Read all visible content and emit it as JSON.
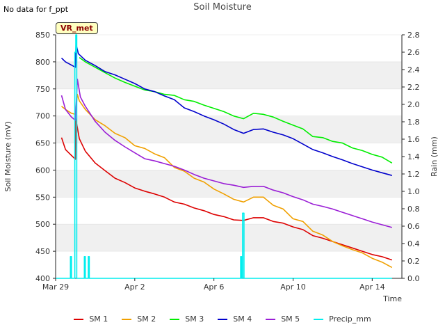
{
  "header": {
    "no_data_note": "No data for f_ppt",
    "title": "Soil Moisture",
    "site_badge": "VR_met"
  },
  "chart_data": {
    "type": "line",
    "title": "Soil Moisture",
    "xlabel": "Time",
    "ylabel": "Soil Moisture (mV)",
    "y2label": "Rain (mm)",
    "xlim": [
      0,
      17.5
    ],
    "ylim": [
      400,
      850
    ],
    "y2lim": [
      0,
      2.8
    ],
    "x_ticks": [
      {
        "x": 0,
        "label": "Mar 29"
      },
      {
        "x": 4,
        "label": "Apr 2"
      },
      {
        "x": 8,
        "label": "Apr 6"
      },
      {
        "x": 12,
        "label": "Apr 10"
      },
      {
        "x": 16,
        "label": "Apr 14"
      }
    ],
    "y_ticks": [
      400,
      450,
      500,
      550,
      600,
      650,
      700,
      750,
      800,
      850
    ],
    "y2_ticks": [
      0.0,
      0.2,
      0.4,
      0.6,
      0.8,
      1.0,
      1.2,
      1.4,
      1.6,
      1.8,
      2.0,
      2.2,
      2.4,
      2.6,
      2.8
    ],
    "grid": "alternating horizontal bands",
    "legend_position": "bottom",
    "series": [
      {
        "name": "SM 1",
        "color": "#dd0000",
        "axis": "left",
        "points": [
          [
            0.3,
            660
          ],
          [
            0.5,
            638
          ],
          [
            0.8,
            627
          ],
          [
            1.0,
            620
          ],
          [
            1.02,
            695
          ],
          [
            1.2,
            658
          ],
          [
            1.5,
            635
          ],
          [
            2.0,
            613
          ],
          [
            2.5,
            599
          ],
          [
            3.0,
            585
          ],
          [
            3.5,
            577
          ],
          [
            4.0,
            567
          ],
          [
            4.5,
            561
          ],
          [
            5.0,
            556
          ],
          [
            5.5,
            550
          ],
          [
            6.0,
            541
          ],
          [
            6.5,
            537
          ],
          [
            7.0,
            530
          ],
          [
            7.5,
            525
          ],
          [
            8.0,
            518
          ],
          [
            8.5,
            514
          ],
          [
            9.0,
            508
          ],
          [
            9.5,
            507
          ],
          [
            10.0,
            512
          ],
          [
            10.5,
            512
          ],
          [
            11.0,
            505
          ],
          [
            11.5,
            502
          ],
          [
            12.0,
            495
          ],
          [
            12.5,
            490
          ],
          [
            13.0,
            479
          ],
          [
            13.5,
            474
          ],
          [
            14.0,
            468
          ],
          [
            14.5,
            462
          ],
          [
            15.0,
            456
          ],
          [
            15.5,
            450
          ],
          [
            16.0,
            444
          ],
          [
            16.5,
            440
          ],
          [
            17.0,
            434
          ]
        ]
      },
      {
        "name": "SM 2",
        "color": "#f0a000",
        "axis": "left",
        "points": [
          [
            0.3,
            718
          ],
          [
            0.5,
            712
          ],
          [
            0.8,
            705
          ],
          [
            1.0,
            703
          ],
          [
            1.1,
            740
          ],
          [
            1.2,
            728
          ],
          [
            1.5,
            712
          ],
          [
            2.0,
            693
          ],
          [
            2.5,
            682
          ],
          [
            3.0,
            668
          ],
          [
            3.5,
            660
          ],
          [
            4.0,
            645
          ],
          [
            4.5,
            640
          ],
          [
            5.0,
            630
          ],
          [
            5.5,
            623
          ],
          [
            6.0,
            605
          ],
          [
            6.5,
            598
          ],
          [
            7.0,
            585
          ],
          [
            7.5,
            578
          ],
          [
            8.0,
            565
          ],
          [
            8.5,
            556
          ],
          [
            9.0,
            546
          ],
          [
            9.5,
            541
          ],
          [
            10.0,
            550
          ],
          [
            10.5,
            550
          ],
          [
            11.0,
            535
          ],
          [
            11.5,
            528
          ],
          [
            12.0,
            510
          ],
          [
            12.5,
            505
          ],
          [
            13.0,
            487
          ],
          [
            13.5,
            480
          ],
          [
            14.0,
            468
          ],
          [
            14.5,
            460
          ],
          [
            15.0,
            453
          ],
          [
            15.5,
            447
          ],
          [
            16.0,
            437
          ],
          [
            16.5,
            430
          ],
          [
            17.0,
            420
          ]
        ]
      },
      {
        "name": "SM 3",
        "color": "#00ee00",
        "axis": "left",
        "points": [
          [
            1.2,
            808
          ],
          [
            1.5,
            800
          ],
          [
            2.0,
            790
          ],
          [
            2.5,
            780
          ],
          [
            3.0,
            770
          ],
          [
            3.5,
            762
          ],
          [
            4.0,
            755
          ],
          [
            4.5,
            748
          ],
          [
            5.0,
            745
          ],
          [
            5.5,
            740
          ],
          [
            6.0,
            738
          ],
          [
            6.5,
            730
          ],
          [
            7.0,
            727
          ],
          [
            7.5,
            720
          ],
          [
            8.0,
            714
          ],
          [
            8.5,
            708
          ],
          [
            9.0,
            700
          ],
          [
            9.5,
            695
          ],
          [
            10.0,
            705
          ],
          [
            10.5,
            703
          ],
          [
            11.0,
            698
          ],
          [
            11.5,
            690
          ],
          [
            12.0,
            683
          ],
          [
            12.5,
            676
          ],
          [
            13.0,
            662
          ],
          [
            13.5,
            660
          ],
          [
            14.0,
            653
          ],
          [
            14.5,
            650
          ],
          [
            15.0,
            641
          ],
          [
            15.5,
            636
          ],
          [
            16.0,
            629
          ],
          [
            16.5,
            624
          ],
          [
            17.0,
            613
          ]
        ]
      },
      {
        "name": "SM 4",
        "color": "#0000cc",
        "axis": "left",
        "points": [
          [
            0.3,
            807
          ],
          [
            0.5,
            800
          ],
          [
            0.8,
            794
          ],
          [
            1.0,
            790
          ],
          [
            1.03,
            833
          ],
          [
            1.15,
            815
          ],
          [
            1.5,
            803
          ],
          [
            2.0,
            793
          ],
          [
            2.5,
            782
          ],
          [
            3.0,
            776
          ],
          [
            3.5,
            768
          ],
          [
            4.0,
            760
          ],
          [
            4.5,
            750
          ],
          [
            5.0,
            745
          ],
          [
            5.5,
            737
          ],
          [
            6.0,
            730
          ],
          [
            6.5,
            715
          ],
          [
            7.0,
            708
          ],
          [
            7.5,
            700
          ],
          [
            8.0,
            693
          ],
          [
            8.5,
            685
          ],
          [
            9.0,
            675
          ],
          [
            9.5,
            668
          ],
          [
            10.0,
            675
          ],
          [
            10.5,
            676
          ],
          [
            11.0,
            670
          ],
          [
            11.5,
            665
          ],
          [
            12.0,
            658
          ],
          [
            12.5,
            648
          ],
          [
            13.0,
            638
          ],
          [
            13.5,
            632
          ],
          [
            14.0,
            625
          ],
          [
            14.5,
            619
          ],
          [
            15.0,
            612
          ],
          [
            15.5,
            606
          ],
          [
            16.0,
            600
          ],
          [
            16.5,
            595
          ],
          [
            17.0,
            590
          ]
        ]
      },
      {
        "name": "SM 5",
        "color": "#9a1ed6",
        "axis": "left",
        "points": [
          [
            0.3,
            738
          ],
          [
            0.5,
            712
          ],
          [
            0.8,
            698
          ],
          [
            1.0,
            692
          ],
          [
            1.1,
            768
          ],
          [
            1.25,
            735
          ],
          [
            1.5,
            718
          ],
          [
            2.0,
            690
          ],
          [
            2.5,
            670
          ],
          [
            3.0,
            655
          ],
          [
            3.5,
            643
          ],
          [
            4.0,
            632
          ],
          [
            4.5,
            621
          ],
          [
            5.0,
            617
          ],
          [
            5.5,
            612
          ],
          [
            6.0,
            607
          ],
          [
            6.5,
            600
          ],
          [
            7.0,
            592
          ],
          [
            7.5,
            585
          ],
          [
            8.0,
            580
          ],
          [
            8.5,
            575
          ],
          [
            9.0,
            572
          ],
          [
            9.5,
            568
          ],
          [
            10.0,
            570
          ],
          [
            10.5,
            570
          ],
          [
            11.0,
            563
          ],
          [
            11.5,
            558
          ],
          [
            12.0,
            551
          ],
          [
            12.5,
            545
          ],
          [
            13.0,
            537
          ],
          [
            13.5,
            533
          ],
          [
            14.0,
            528
          ],
          [
            14.5,
            522
          ],
          [
            15.0,
            516
          ],
          [
            15.5,
            510
          ],
          [
            16.0,
            504
          ],
          [
            16.5,
            499
          ],
          [
            17.0,
            494
          ]
        ]
      },
      {
        "name": "Precip_mm",
        "color": "#00eeee",
        "axis": "right",
        "points": [
          [
            0.0,
            0
          ],
          [
            0.75,
            0
          ],
          [
            0.75,
            0.25
          ],
          [
            0.8,
            0.25
          ],
          [
            0.8,
            0
          ],
          [
            0.97,
            0
          ],
          [
            0.97,
            2.6
          ],
          [
            1.02,
            2.6
          ],
          [
            1.02,
            2.8
          ],
          [
            1.07,
            2.8
          ],
          [
            1.07,
            0
          ],
          [
            1.45,
            0
          ],
          [
            1.45,
            0.25
          ],
          [
            1.5,
            0.25
          ],
          [
            1.5,
            0
          ],
          [
            1.65,
            0
          ],
          [
            1.65,
            0.25
          ],
          [
            1.7,
            0.25
          ],
          [
            1.7,
            0
          ],
          [
            9.35,
            0
          ],
          [
            9.35,
            0.25
          ],
          [
            9.4,
            0.25
          ],
          [
            9.4,
            0
          ],
          [
            9.45,
            0
          ],
          [
            9.45,
            0.75
          ],
          [
            9.52,
            0.75
          ],
          [
            9.52,
            0
          ],
          [
            17.0,
            0
          ]
        ]
      }
    ]
  }
}
